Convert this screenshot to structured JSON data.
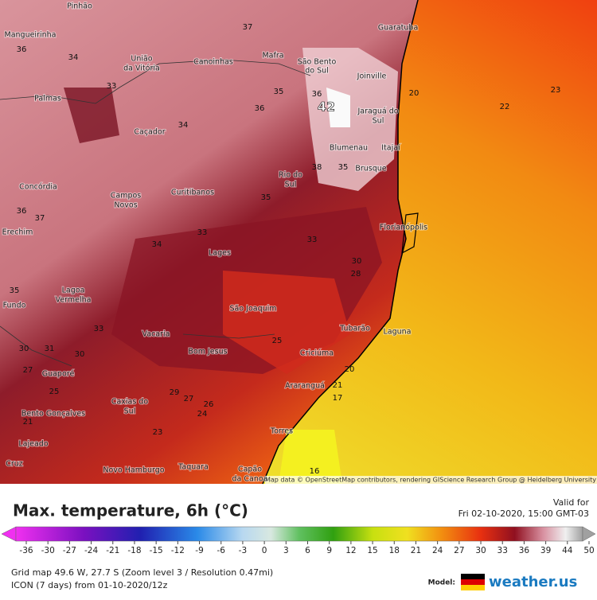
{
  "map": {
    "cities": [
      "Pinhão",
      "Mangueirinha",
      "União",
      "da Vitória",
      "Canoinhas",
      "Mafra",
      "São Bento",
      "do Sul",
      "Guaratuba",
      "Joinville",
      "Jaraguá do",
      "Sul",
      "Palmas",
      "Caçador",
      "Blumenau",
      "Itajaí",
      "Brusque",
      "Rio do",
      "Sul",
      "Concórdia",
      "Curitibanos",
      "Campos",
      "Novos",
      "Erechim",
      "Florianópolis",
      "Lages",
      "Lagoa",
      "Vermelha",
      "Fundo",
      "São Joaquim",
      "Vacaria",
      "Tubarão",
      "Laguna",
      "Bom Jesus",
      "Criciúma",
      "Guaporé",
      "Araranguá",
      "Caxias do",
      "Sul",
      "Bento Gonçalves",
      "Torres",
      "Lajeado",
      "Cruz",
      "Novo Hamburgo",
      "Taquara",
      "Capão",
      "da Canoa"
    ],
    "contour_labels": [
      37,
      36,
      34,
      33,
      35,
      36,
      42,
      36,
      34,
      20,
      23,
      22,
      38,
      35,
      35,
      36,
      37,
      33,
      34,
      33,
      30,
      28,
      35,
      33,
      30,
      31,
      30,
      25,
      27,
      20,
      21,
      17,
      25,
      29,
      27,
      26,
      24,
      21,
      23,
      16
    ],
    "attribution": "Map data © OpenStreetMap contributors, rendering GIScience Research Group @ Heidelberg University"
  },
  "legend": {
    "title": "Max. temperature, 6h (°C)",
    "valid_for": "Valid for",
    "valid_time": "Fri 02-10-2020, 15:00 GMT-03",
    "ticks": [
      -36,
      -30,
      -27,
      -24,
      -21,
      -18,
      -15,
      -12,
      -9,
      -6,
      -3,
      0,
      3,
      6,
      9,
      12,
      15,
      18,
      21,
      24,
      27,
      30,
      33,
      36,
      39,
      44,
      50
    ],
    "grid_info": "Grid map 49.6 W, 27.7 S (Zoom level 3 / Resolution 0.47mi)",
    "model_run": "ICON (7 days) from 01-10-2020/12z",
    "model_label": "Model:",
    "brand": "weather.us"
  }
}
